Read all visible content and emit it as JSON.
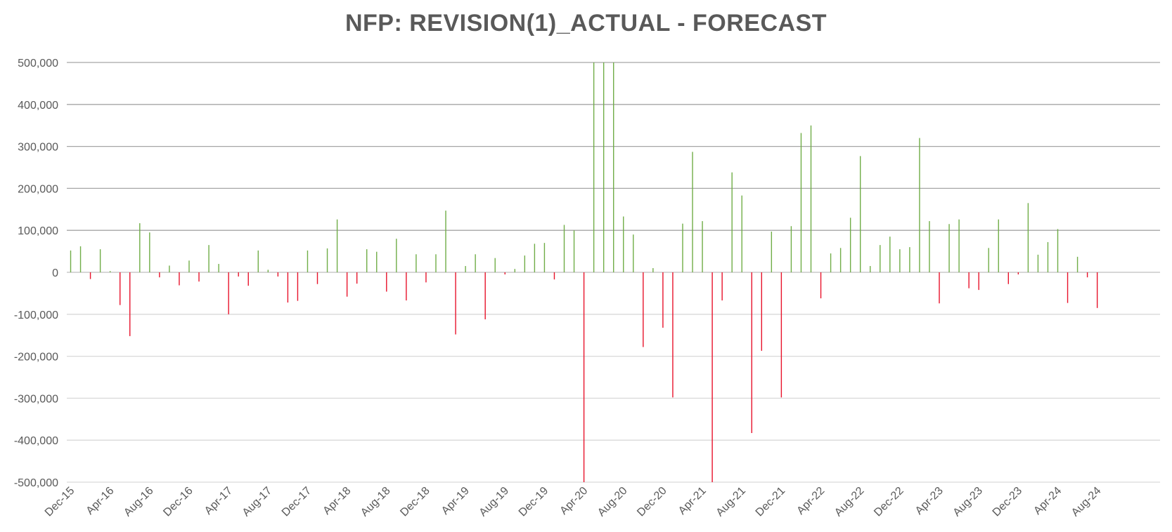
{
  "chart_data": {
    "type": "bar",
    "title": "NFP: REVISION(1)_ACTUAL - FORECAST",
    "xlabel": "",
    "ylabel": "",
    "ylim": [
      -500000,
      500000
    ],
    "grid": true,
    "legend": "none",
    "colors": {
      "positive": "#70AD47",
      "negative": "#E8132B",
      "grid": "#A6A6A6",
      "axis": "#BFBFBF",
      "text": "#595959"
    },
    "yticks": [
      500000,
      400000,
      300000,
      200000,
      100000,
      0,
      -100000,
      -200000,
      -300000,
      -400000,
      -500000
    ],
    "ytick_labels": [
      "500,000",
      "400,000",
      "300,000",
      "200,000",
      "100,000",
      "0",
      "-100,000",
      "-200,000",
      "-300,000",
      "-400,000",
      "-500,000"
    ],
    "xtick_labels": [
      "Dec-15",
      "Apr-16",
      "Aug-16",
      "Dec-16",
      "Apr-17",
      "Aug-17",
      "Dec-17",
      "Apr-18",
      "Aug-18",
      "Dec-18",
      "Apr-19",
      "Aug-19",
      "Dec-19",
      "Apr-20",
      "Aug-20",
      "Dec-20",
      "Apr-21",
      "Aug-21",
      "Dec-21",
      "Apr-22",
      "Aug-22",
      "Dec-22",
      "Apr-23",
      "Aug-23",
      "Dec-23",
      "Apr-24",
      "Aug-24"
    ],
    "x_start": "Dec-15",
    "x_end": "Aug-24",
    "values": [
      52000,
      62000,
      -16000,
      55000,
      3000,
      -78000,
      -152000,
      117000,
      95000,
      -12000,
      16000,
      -31000,
      28000,
      -22000,
      65000,
      20000,
      -100000,
      -10000,
      -32000,
      52000,
      6000,
      -10000,
      -72000,
      -68000,
      52000,
      -28000,
      57000,
      126000,
      -58000,
      -27000,
      55000,
      49000,
      -46000,
      80000,
      -67000,
      43000,
      -24000,
      43000,
      147000,
      -148000,
      15000,
      43000,
      -112000,
      34000,
      -5000,
      8000,
      40000,
      68000,
      70000,
      -17000,
      113000,
      100000,
      -500000,
      500000,
      500000,
      500000,
      133000,
      90000,
      -178000,
      10000,
      -132000,
      -298000,
      116000,
      287000,
      122000,
      -500000,
      -67000,
      238000,
      183000,
      -383000,
      -187000,
      97000,
      -298000,
      110000,
      332000,
      350000,
      -62000,
      45000,
      58000,
      130000,
      277000,
      15000,
      65000,
      85000,
      55000,
      60000,
      320000,
      122000,
      -74000,
      115000,
      126000,
      -38000,
      -42000,
      58000,
      126000,
      -28000,
      -5000,
      165000,
      42000,
      72000,
      103000,
      -73000,
      37000,
      -12000,
      -85000
    ]
  }
}
